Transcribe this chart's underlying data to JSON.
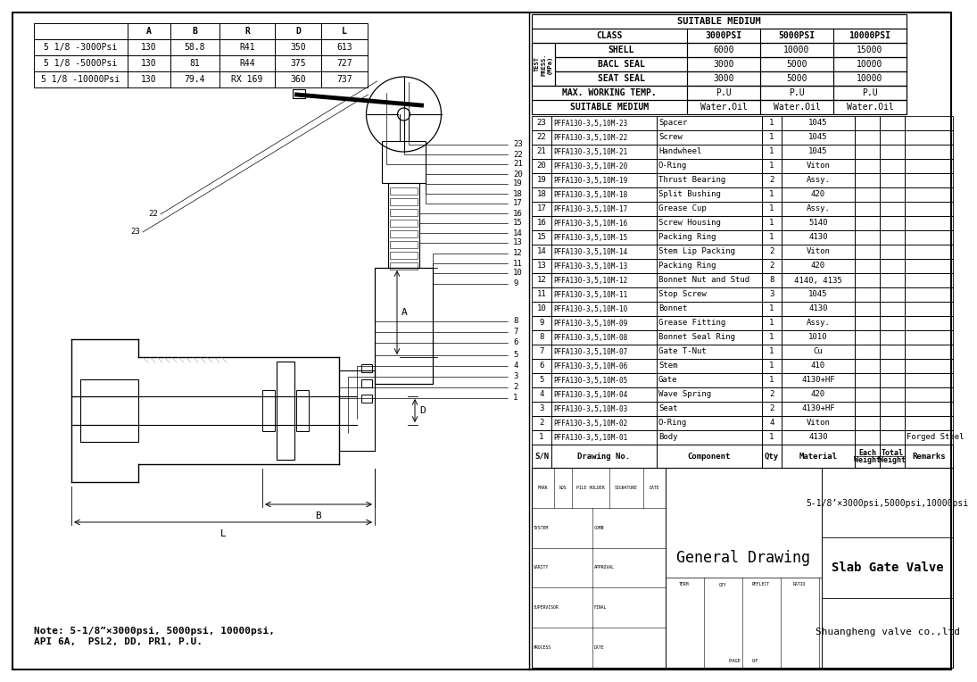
{
  "bg_color": "#ffffff",
  "dim_table": {
    "headers": [
      "",
      "A",
      "B",
      "R",
      "D",
      "L"
    ],
    "rows": [
      [
        "5 1/8 -3000Psi",
        "130",
        "58.8",
        "R41",
        "350",
        "613"
      ],
      [
        "5 1/8 -5000Psi",
        "130",
        "81",
        "R44",
        "375",
        "727"
      ],
      [
        "5 1/8 -10000Psi",
        "130",
        "79.4",
        "RX 169",
        "360",
        "737"
      ]
    ]
  },
  "suitable_medium_table": {
    "main_header": "SUITABLE MEDIUM",
    "class_row": [
      "CLASS",
      "3000PSI",
      "5000PSI",
      "10000PSI"
    ],
    "test_press_label": "TEST\nPRESS.\n(MPa)",
    "test_rows": [
      [
        "SHELL",
        "6000",
        "10000",
        "15000"
      ],
      [
        "BACL SEAL",
        "3000",
        "5000",
        "10000"
      ],
      [
        "SEAT SEAL",
        "3000",
        "5000",
        "10000"
      ]
    ],
    "max_working_temp_row": [
      "MAX. WORKING TEMP.",
      "P.U",
      "P.U",
      "P.U"
    ],
    "suitable_medium_row": [
      "SUITABLE MEDIUM",
      "Water.Oil",
      "Water.Oil",
      "Water.Oil"
    ]
  },
  "bom_table": {
    "headers": [
      "S/N",
      "Drawing No.",
      "Component",
      "Qty",
      "Material",
      "Each\nWeight",
      "Total\nWeight",
      "Remarks"
    ],
    "rows": [
      [
        "23",
        "PFFA130-3,5,10M-23",
        "Spacer",
        "1",
        "1045",
        "",
        "",
        ""
      ],
      [
        "22",
        "PFFA130-3,5,10M-22",
        "Screw",
        "1",
        "1045",
        "",
        "",
        ""
      ],
      [
        "21",
        "PFFA130-3,5,10M-21",
        "Handwheel",
        "1",
        "1045",
        "",
        "",
        ""
      ],
      [
        "20",
        "PFFA130-3,5,10M-20",
        "O-Ring",
        "1",
        "Viton",
        "",
        "",
        ""
      ],
      [
        "19",
        "PFFA130-3,5,10M-19",
        "Thrust Bearing",
        "2",
        "Assy.",
        "",
        "",
        ""
      ],
      [
        "18",
        "PFFA130-3,5,10M-18",
        "Split Bushing",
        "1",
        "420",
        "",
        "",
        ""
      ],
      [
        "17",
        "PFFA130-3,5,10M-17",
        "Grease Cup",
        "1",
        "Assy.",
        "",
        "",
        ""
      ],
      [
        "16",
        "PFFA130-3,5,10M-16",
        "Screw Housing",
        "1",
        "5140",
        "",
        "",
        ""
      ],
      [
        "15",
        "PFFA130-3,5,10M-15",
        "Packing Ring",
        "1",
        "4130",
        "",
        "",
        ""
      ],
      [
        "14",
        "PFFA130-3,5,10M-14",
        "Stem Lip Packing",
        "2",
        "Viton",
        "",
        "",
        ""
      ],
      [
        "13",
        "PFFA130-3,5,10M-13",
        "Packing Ring",
        "2",
        "420",
        "",
        "",
        ""
      ],
      [
        "12",
        "PFFA130-3,5,10M-12",
        "Bonnet Nut and Stud",
        "8",
        "4140, 4135",
        "",
        "",
        ""
      ],
      [
        "11",
        "PFFA130-3,5,10M-11",
        "Stop Screw",
        "3",
        "1045",
        "",
        "",
        ""
      ],
      [
        "10",
        "PFFA130-3,5,10M-10",
        "Bonnet",
        "1",
        "4130",
        "",
        "",
        ""
      ],
      [
        "9",
        "PFFA130-3,5,10M-09",
        "Grease Fitting",
        "1",
        "Assy.",
        "",
        "",
        ""
      ],
      [
        "8",
        "PFFA130-3,5,10M-08",
        "Bonnet Seal Ring",
        "1",
        "1010",
        "",
        "",
        ""
      ],
      [
        "7",
        "PFFA130-3,5,10M-07",
        "Gate T-Nut",
        "1",
        "Cu",
        "",
        "",
        ""
      ],
      [
        "6",
        "PFFA130-3,5,10M-06",
        "Stem",
        "1",
        "410",
        "",
        "",
        ""
      ],
      [
        "5",
        "PFFA130-3,5,10M-05",
        "Gate",
        "1",
        "4130+HF",
        "",
        "",
        ""
      ],
      [
        "4",
        "PFFA130-3,5,10M-04",
        "Wave Spring",
        "2",
        "420",
        "",
        "",
        ""
      ],
      [
        "3",
        "PFFA130-3,5,10M-03",
        "Seat",
        "2",
        "4130+HF",
        "",
        "",
        ""
      ],
      [
        "2",
        "PFFA130-3,5,10M-02",
        "O-Ring",
        "4",
        "Viton",
        "",
        "",
        ""
      ],
      [
        "1",
        "PFFA130-3,5,10M-01",
        "Body",
        "1",
        "4130",
        "",
        "",
        "Forged Steel"
      ]
    ]
  },
  "title_block": {
    "general_drawing": "General Drawing",
    "valve_name": "5-1/8’×3000psi,5000psi,10000psi",
    "valve_type": "Slab Gate Valve",
    "company": "Shuangheng valve co.,ltd",
    "note": "Note: 5-1/8”×3000psi, 5000psi, 10000psi,\nAPI 6A,  PSL2, DD, PR1, P.U."
  },
  "title_block_left_rows": [
    [
      "MARK",
      "NOS",
      "PILE HOLDER",
      "SIGNATURE",
      "DATE"
    ],
    [
      "SYSTEM",
      "",
      "COMB",
      "",
      "TERM",
      "QTY",
      "REFLECT",
      "RATIO"
    ],
    [
      "VARITY",
      "",
      "APPROVAL",
      ""
    ],
    [
      "SUPERVISOR",
      "",
      "FINAL",
      ""
    ],
    [
      "PROCESS",
      "",
      "DATE",
      "",
      "PAGE",
      "OF"
    ]
  ]
}
